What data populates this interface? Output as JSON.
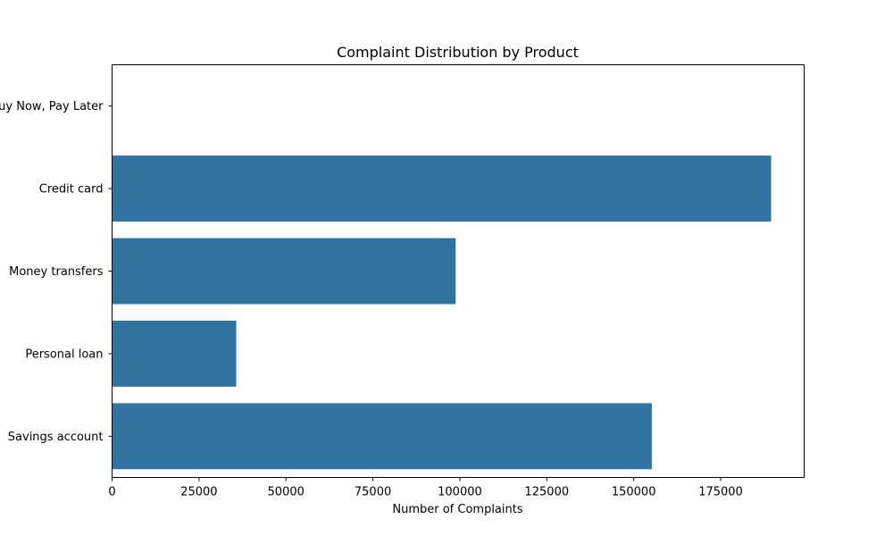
{
  "chart_data": {
    "type": "bar",
    "orientation": "horizontal",
    "title": "Complaint Distribution by Product",
    "xlabel": "Number of Complaints",
    "ylabel": "",
    "categories": [
      "Buy Now, Pay Later",
      "Credit card",
      "Money transfers",
      "Personal loan",
      "Savings account"
    ],
    "values": [
      40,
      189500,
      98800,
      35700,
      155200
    ],
    "xlim": [
      0,
      199000
    ],
    "xticks": [
      "0",
      "25000",
      "50000",
      "75000",
      "100000",
      "125000",
      "150000",
      "175000"
    ],
    "xtick_values": [
      0,
      25000,
      50000,
      75000,
      100000,
      125000,
      150000,
      175000
    ],
    "grid": false,
    "bar_color": "#3274a1"
  }
}
